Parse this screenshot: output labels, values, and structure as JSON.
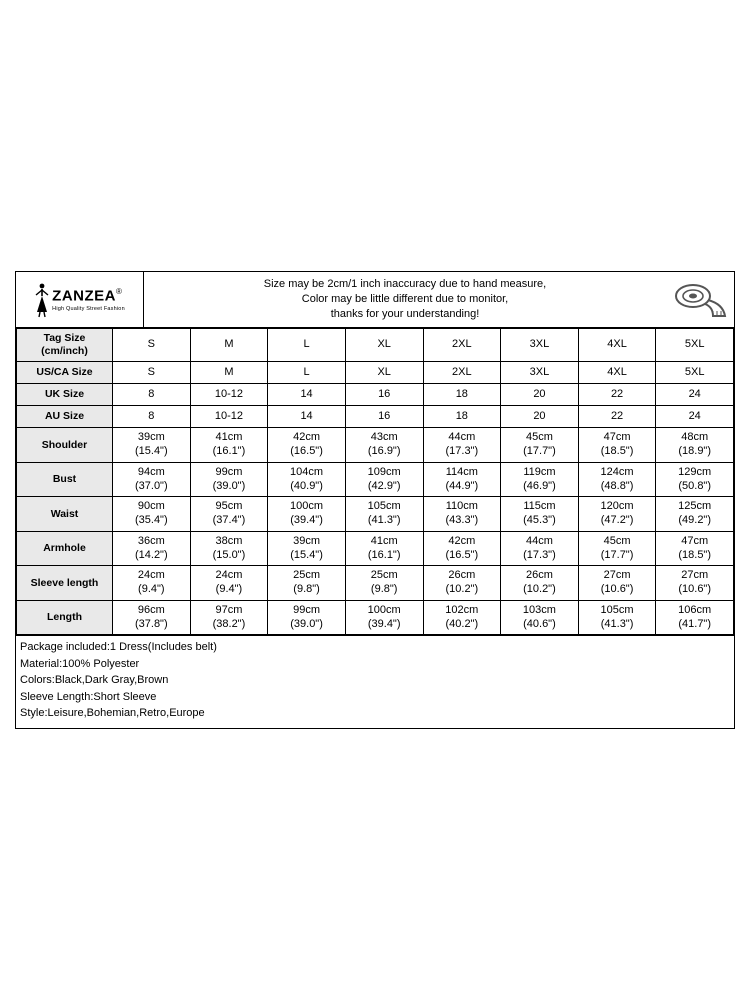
{
  "brand": {
    "name": "ZANZEA",
    "reg": "®",
    "tagline": "High Quality Street Fashion"
  },
  "header_note": {
    "l1": "Size may be 2cm/1 inch inaccuracy due to hand measure,",
    "l2": "Color may be little different due to monitor,",
    "l3": "thanks for your understanding!"
  },
  "row_labels": {
    "tag": "Tag Size\n(cm/inch)",
    "usca": "US/CA Size",
    "uk": "UK Size",
    "au": "AU Size",
    "shoulder": "Shoulder",
    "bust": "Bust",
    "waist": "Waist",
    "armhole": "Armhole",
    "sleeve": "Sleeve length",
    "length": "Length"
  },
  "sizes": {
    "tag": [
      "S",
      "M",
      "L",
      "XL",
      "2XL",
      "3XL",
      "4XL",
      "5XL"
    ],
    "usca": [
      "S",
      "M",
      "L",
      "XL",
      "2XL",
      "3XL",
      "4XL",
      "5XL"
    ],
    "uk": [
      "8",
      "10-12",
      "14",
      "16",
      "18",
      "20",
      "22",
      "24"
    ],
    "au": [
      "8",
      "10-12",
      "14",
      "16",
      "18",
      "20",
      "22",
      "24"
    ]
  },
  "meas": {
    "shoulder": {
      "cm": [
        "39cm",
        "41cm",
        "42cm",
        "43cm",
        "44cm",
        "45cm",
        "47cm",
        "48cm"
      ],
      "in": [
        "(15.4\")",
        "(16.1\")",
        "(16.5\")",
        "(16.9\")",
        "(17.3\")",
        "(17.7\")",
        "(18.5\")",
        "(18.9\")"
      ]
    },
    "bust": {
      "cm": [
        "94cm",
        "99cm",
        "104cm",
        "109cm",
        "114cm",
        "119cm",
        "124cm",
        "129cm"
      ],
      "in": [
        "(37.0\")",
        "(39.0\")",
        "(40.9\")",
        "(42.9\")",
        "(44.9\")",
        "(46.9\")",
        "(48.8\")",
        "(50.8\")"
      ]
    },
    "waist": {
      "cm": [
        "90cm",
        "95cm",
        "100cm",
        "105cm",
        "110cm",
        "115cm",
        "120cm",
        "125cm"
      ],
      "in": [
        "(35.4\")",
        "(37.4\")",
        "(39.4\")",
        "(41.3\")",
        "(43.3\")",
        "(45.3\")",
        "(47.2\")",
        "(49.2\")"
      ]
    },
    "armhole": {
      "cm": [
        "36cm",
        "38cm",
        "39cm",
        "41cm",
        "42cm",
        "44cm",
        "45cm",
        "47cm"
      ],
      "in": [
        "(14.2\")",
        "(15.0\")",
        "(15.4\")",
        "(16.1\")",
        "(16.5\")",
        "(17.3\")",
        "(17.7\")",
        "(18.5\")"
      ]
    },
    "sleeve": {
      "cm": [
        "24cm",
        "24cm",
        "25cm",
        "25cm",
        "26cm",
        "26cm",
        "27cm",
        "27cm"
      ],
      "in": [
        "(9.4\")",
        "(9.4\")",
        "(9.8\")",
        "(9.8\")",
        "(10.2\")",
        "(10.2\")",
        "(10.6\")",
        "(10.6\")"
      ]
    },
    "length": {
      "cm": [
        "96cm",
        "97cm",
        "99cm",
        "100cm",
        "102cm",
        "103cm",
        "105cm",
        "106cm"
      ],
      "in": [
        "(37.8\")",
        "(38.2\")",
        "(39.0\")",
        "(39.4\")",
        "(40.2\")",
        "(40.6\")",
        "(41.3\")",
        "(41.7\")"
      ]
    }
  },
  "notes": {
    "l1": "Package included:1 Dress(Includes belt)",
    "l2": "Material:100% Polyester",
    "l3": "Colors:Black,Dark Gray,Brown",
    "l4": "Sleeve Length:Short Sleeve",
    "l5": "Style:Leisure,Bohemian,Retro,Europe"
  },
  "style": {
    "border_color": "#000000",
    "row_label_bg": "#e9e9e9",
    "font_size_cell": 11,
    "font_size_label": 10.5,
    "page_bg": "#ffffff"
  }
}
